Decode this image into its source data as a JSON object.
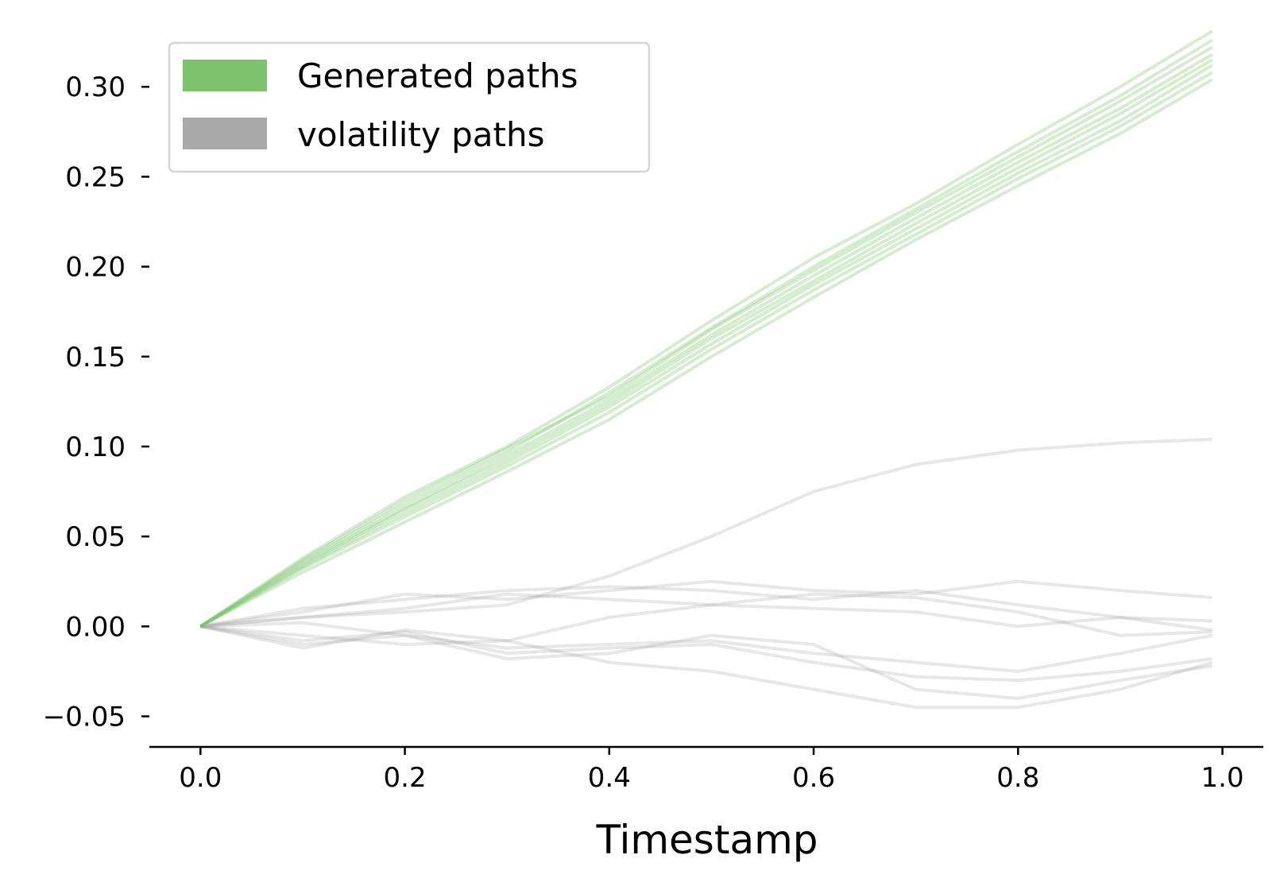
{
  "chart_data": {
    "type": "line",
    "title": "",
    "xlabel": "Timestamp",
    "ylabel": "",
    "xlim": [
      -0.05,
      1.04
    ],
    "ylim": [
      -0.067,
      0.335
    ],
    "x_ticks": [
      0.0,
      0.2,
      0.4,
      0.6,
      0.8,
      1.0
    ],
    "x_tick_labels": [
      "0.0",
      "0.2",
      "0.4",
      "0.6",
      "0.8",
      "1.0"
    ],
    "y_ticks": [
      -0.05,
      0.0,
      0.05,
      0.1,
      0.15,
      0.2,
      0.25,
      0.3
    ],
    "y_tick_labels": [
      "−0.05",
      "0.00",
      "0.05",
      "0.10",
      "0.15",
      "0.20",
      "0.25",
      "0.30"
    ],
    "grid": false,
    "legend": {
      "placement": "upper-left",
      "entries": [
        {
          "label": "Generated paths",
          "color": "#7dc36c"
        },
        {
          "label": "volatility paths",
          "color": "#a9a9a9"
        }
      ]
    },
    "x": [
      0.0,
      0.1,
      0.2,
      0.3,
      0.4,
      0.5,
      0.6,
      0.7,
      0.8,
      0.9,
      0.99
    ],
    "series": [
      {
        "group": "Generated paths",
        "values": [
          0.0,
          0.038,
          0.072,
          0.1,
          0.133,
          0.17,
          0.205,
          0.235,
          0.268,
          0.3,
          0.331
        ]
      },
      {
        "group": "Generated paths",
        "values": [
          0.0,
          0.036,
          0.068,
          0.097,
          0.13,
          0.166,
          0.2,
          0.232,
          0.264,
          0.295,
          0.326
        ]
      },
      {
        "group": "Generated paths",
        "values": [
          0.0,
          0.037,
          0.07,
          0.099,
          0.128,
          0.165,
          0.198,
          0.23,
          0.261,
          0.292,
          0.322
        ]
      },
      {
        "group": "Generated paths",
        "values": [
          0.0,
          0.035,
          0.066,
          0.095,
          0.126,
          0.162,
          0.195,
          0.227,
          0.258,
          0.288,
          0.318
        ]
      },
      {
        "group": "Generated paths",
        "values": [
          0.0,
          0.034,
          0.065,
          0.093,
          0.124,
          0.16,
          0.192,
          0.224,
          0.255,
          0.285,
          0.315
        ]
      },
      {
        "group": "Generated paths",
        "values": [
          0.0,
          0.033,
          0.063,
          0.091,
          0.122,
          0.157,
          0.19,
          0.221,
          0.252,
          0.281,
          0.312
        ]
      },
      {
        "group": "Generated paths",
        "values": [
          0.0,
          0.032,
          0.061,
          0.089,
          0.119,
          0.154,
          0.187,
          0.218,
          0.249,
          0.278,
          0.308
        ]
      },
      {
        "group": "Generated paths",
        "values": [
          0.0,
          0.03,
          0.058,
          0.086,
          0.115,
          0.15,
          0.183,
          0.215,
          0.245,
          0.274,
          0.304
        ]
      },
      {
        "group": "volatility paths",
        "values": [
          0.0,
          0.005,
          0.008,
          0.012,
          0.028,
          0.05,
          0.075,
          0.09,
          0.098,
          0.102,
          0.104
        ]
      },
      {
        "group": "volatility paths",
        "values": [
          0.0,
          0.008,
          0.018,
          0.015,
          0.02,
          0.025,
          0.02,
          0.018,
          0.025,
          0.02,
          0.016
        ]
      },
      {
        "group": "volatility paths",
        "values": [
          0.0,
          0.01,
          0.015,
          0.02,
          0.022,
          0.02,
          0.015,
          0.02,
          0.012,
          0.005,
          0.003
        ]
      },
      {
        "group": "volatility paths",
        "values": [
          0.0,
          0.005,
          0.01,
          0.018,
          0.015,
          0.012,
          0.018,
          0.016,
          0.008,
          -0.005,
          -0.003
        ]
      },
      {
        "group": "volatility paths",
        "values": [
          0.0,
          -0.005,
          -0.01,
          -0.008,
          0.005,
          0.012,
          0.01,
          0.008,
          0.0,
          0.005,
          -0.002
        ]
      },
      {
        "group": "volatility paths",
        "values": [
          0.0,
          0.002,
          -0.005,
          -0.012,
          -0.01,
          -0.008,
          -0.015,
          -0.02,
          -0.025,
          -0.015,
          -0.005
        ]
      },
      {
        "group": "volatility paths",
        "values": [
          0.0,
          -0.008,
          -0.003,
          -0.015,
          -0.012,
          -0.01,
          -0.02,
          -0.028,
          -0.03,
          -0.025,
          -0.018
        ]
      },
      {
        "group": "volatility paths",
        "values": [
          0.0,
          -0.01,
          -0.005,
          -0.018,
          -0.015,
          -0.005,
          -0.01,
          -0.035,
          -0.04,
          -0.03,
          -0.022
        ]
      },
      {
        "group": "volatility paths",
        "values": [
          0.0,
          -0.012,
          -0.002,
          -0.008,
          -0.02,
          -0.025,
          -0.035,
          -0.045,
          -0.045,
          -0.035,
          -0.02
        ]
      }
    ]
  }
}
